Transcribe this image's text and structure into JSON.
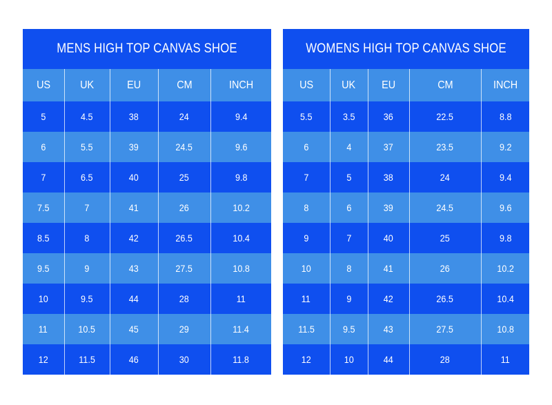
{
  "colors": {
    "dark_row": "#0f4fef",
    "light_row": "#3f8fe7",
    "text": "#ffffff"
  },
  "charts": [
    {
      "title": "MENS HIGH TOP CANVAS SHOE",
      "columns": [
        "US",
        "UK",
        "EU",
        "CM",
        "INCH"
      ],
      "rows": [
        [
          "5",
          "4.5",
          "38",
          "24",
          "9.4"
        ],
        [
          "6",
          "5.5",
          "39",
          "24.5",
          "9.6"
        ],
        [
          "7",
          "6.5",
          "40",
          "25",
          "9.8"
        ],
        [
          "7.5",
          "7",
          "41",
          "26",
          "10.2"
        ],
        [
          "8.5",
          "8",
          "42",
          "26.5",
          "10.4"
        ],
        [
          "9.5",
          "9",
          "43",
          "27.5",
          "10.8"
        ],
        [
          "10",
          "9.5",
          "44",
          "28",
          "11"
        ],
        [
          "11",
          "10.5",
          "45",
          "29",
          "11.4"
        ],
        [
          "12",
          "11.5",
          "46",
          "30",
          "11.8"
        ]
      ]
    },
    {
      "title": "WOMENS HIGH TOP CANVAS SHOE",
      "columns": [
        "US",
        "UK",
        "EU",
        "CM",
        "INCH"
      ],
      "rows": [
        [
          "5.5",
          "3.5",
          "36",
          "22.5",
          "8.8"
        ],
        [
          "6",
          "4",
          "37",
          "23.5",
          "9.2"
        ],
        [
          "7",
          "5",
          "38",
          "24",
          "9.4"
        ],
        [
          "8",
          "6",
          "39",
          "24.5",
          "9.6"
        ],
        [
          "9",
          "7",
          "40",
          "25",
          "9.8"
        ],
        [
          "10",
          "8",
          "41",
          "26",
          "10.2"
        ],
        [
          "11",
          "9",
          "42",
          "26.5",
          "10.4"
        ],
        [
          "11.5",
          "9.5",
          "43",
          "27.5",
          "10.8"
        ],
        [
          "12",
          "10",
          "44",
          "28",
          "11"
        ]
      ]
    }
  ]
}
